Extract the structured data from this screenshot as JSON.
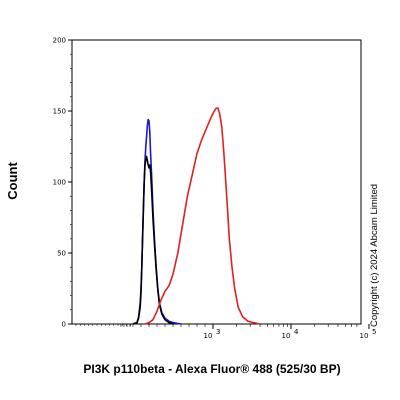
{
  "chart_data": {
    "type": "line",
    "title": "",
    "xlabel": "PI3K p110beta - Alexa Fluor® 488 (525/30 BP)",
    "ylabel": "Count",
    "x_scale": "biexponential",
    "xlim": [
      -50,
      100000
    ],
    "ylim": [
      0,
      200
    ],
    "grid": false,
    "legend": "none",
    "y_ticks": [
      "0",
      "50",
      "100",
      "150",
      "200"
    ],
    "x_ticks": [
      {
        "base": "10",
        "exp": "3",
        "value": 1000
      },
      {
        "base": "10",
        "exp": "4",
        "value": 10000
      },
      {
        "base": "10",
        "exp": "5",
        "value": 100000
      }
    ],
    "annotation": "Copyright (c) 2024  Abcam Limited",
    "series": [
      {
        "color": "#1a1acc",
        "points": [
          [
            0,
            0
          ],
          [
            50,
            1
          ],
          [
            70,
            5
          ],
          [
            90,
            15
          ],
          [
            100,
            25
          ],
          [
            110,
            40
          ],
          [
            120,
            60
          ],
          [
            130,
            80
          ],
          [
            140,
            100
          ],
          [
            150,
            115
          ],
          [
            160,
            125
          ],
          [
            170,
            132
          ],
          [
            180,
            140
          ],
          [
            190,
            144
          ],
          [
            200,
            143
          ],
          [
            210,
            135
          ],
          [
            220,
            120
          ],
          [
            230,
            108
          ],
          [
            240,
            95
          ],
          [
            250,
            80
          ],
          [
            270,
            58
          ],
          [
            290,
            40
          ],
          [
            310,
            25
          ],
          [
            330,
            15
          ],
          [
            360,
            8
          ],
          [
            400,
            4
          ],
          [
            450,
            2
          ],
          [
            500,
            1
          ],
          [
            600,
            0
          ]
        ]
      },
      {
        "color": "#000000",
        "points": [
          [
            0,
            0
          ],
          [
            50,
            1
          ],
          [
            70,
            4
          ],
          [
            90,
            12
          ],
          [
            100,
            22
          ],
          [
            110,
            40
          ],
          [
            120,
            62
          ],
          [
            130,
            82
          ],
          [
            140,
            100
          ],
          [
            150,
            112
          ],
          [
            160,
            116
          ],
          [
            170,
            118
          ],
          [
            180,
            115
          ],
          [
            190,
            112
          ],
          [
            200,
            110
          ],
          [
            210,
            112
          ],
          [
            220,
            107
          ],
          [
            230,
            97
          ],
          [
            240,
            86
          ],
          [
            250,
            74
          ],
          [
            270,
            55
          ],
          [
            290,
            38
          ],
          [
            310,
            24
          ],
          [
            330,
            14
          ],
          [
            360,
            7
          ],
          [
            400,
            3
          ],
          [
            450,
            1
          ],
          [
            500,
            0
          ]
        ]
      },
      {
        "color": "#e02020",
        "points": [
          [
            150,
            0
          ],
          [
            200,
            1
          ],
          [
            250,
            3
          ],
          [
            300,
            9
          ],
          [
            350,
            17
          ],
          [
            400,
            23
          ],
          [
            450,
            27
          ],
          [
            500,
            35
          ],
          [
            560,
            50
          ],
          [
            620,
            70
          ],
          [
            680,
            90
          ],
          [
            740,
            105
          ],
          [
            800,
            120
          ],
          [
            860,
            130
          ],
          [
            920,
            138
          ],
          [
            980,
            146
          ],
          [
            1040,
            150
          ],
          [
            1100,
            152
          ],
          [
            1160,
            152
          ],
          [
            1220,
            148
          ],
          [
            1300,
            138
          ],
          [
            1380,
            120
          ],
          [
            1460,
            100
          ],
          [
            1540,
            80
          ],
          [
            1620,
            60
          ],
          [
            1750,
            40
          ],
          [
            1900,
            25
          ],
          [
            2100,
            12
          ],
          [
            2400,
            5
          ],
          [
            2800,
            2
          ],
          [
            3300,
            1
          ],
          [
            4000,
            0
          ]
        ]
      }
    ]
  }
}
